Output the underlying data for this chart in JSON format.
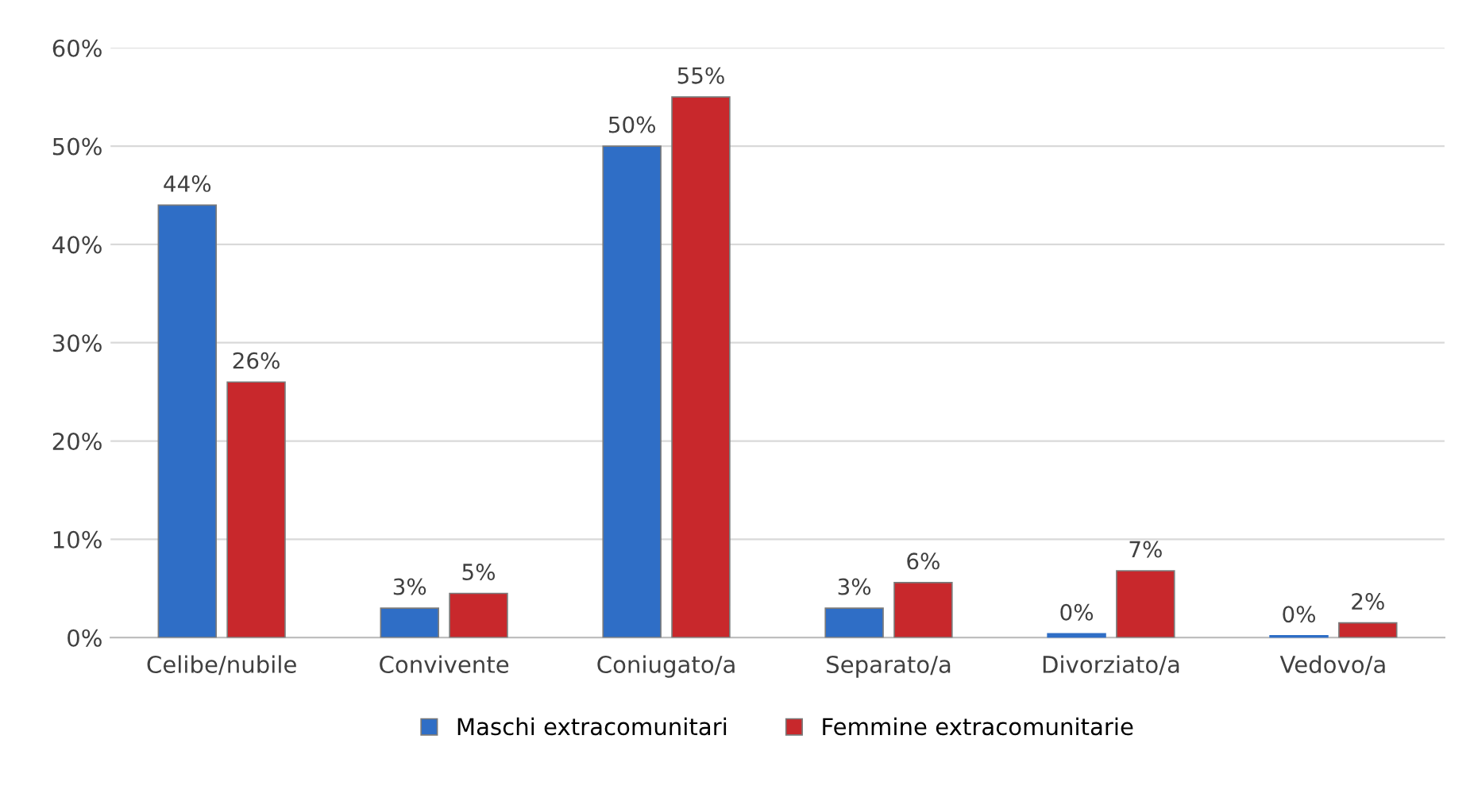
{
  "chart_data": {
    "type": "bar",
    "categories": [
      "Celibe/nubile",
      "Convivente",
      "Coniugato/a",
      "Separato/a",
      "Divorziato/a",
      "Vedovo/a"
    ],
    "series": [
      {
        "name": "Maschi extracomunitari",
        "color": "#2f6ec6",
        "values": [
          44,
          3,
          50,
          3,
          0.4,
          0.2
        ],
        "value_labels": [
          "44%",
          "3%",
          "50%",
          "3%",
          "0%",
          "0%"
        ]
      },
      {
        "name": "Femmine extracomunitarie",
        "color": "#c8282c",
        "values": [
          26,
          4.5,
          55,
          5.6,
          6.8,
          1.5
        ],
        "value_labels": [
          "26%",
          "5%",
          "55%",
          "6%",
          "7%",
          "2%"
        ]
      }
    ],
    "ylim": [
      0,
      60
    ],
    "yticks": [
      {
        "value": 0,
        "label": "0%"
      },
      {
        "value": 10,
        "label": "10%"
      },
      {
        "value": 20,
        "label": "20%"
      },
      {
        "value": 30,
        "label": "30%"
      },
      {
        "value": 40,
        "label": "40%"
      },
      {
        "value": 50,
        "label": "50%"
      },
      {
        "value": 60,
        "label": "60%"
      }
    ],
    "grid": "y",
    "legend": "bottom"
  }
}
